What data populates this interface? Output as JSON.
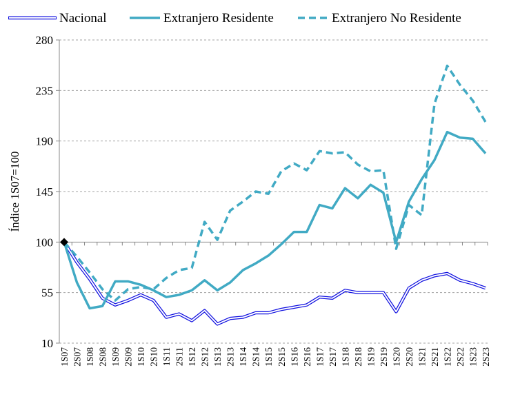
{
  "chart_data": {
    "type": "line",
    "title": "",
    "xlabel": "",
    "ylabel": "Índice 1S07=100",
    "ylim": [
      10,
      280
    ],
    "yticks": [
      10,
      55,
      100,
      145,
      190,
      235,
      280
    ],
    "grid": true,
    "legend_position": "top",
    "categories": [
      "1S07",
      "2S07",
      "1S08",
      "2S08",
      "1S09",
      "2S09",
      "1S10",
      "2S10",
      "1S11",
      "2S11",
      "1S12",
      "2S12",
      "1S13",
      "2S13",
      "1S14",
      "2S14",
      "1S15",
      "2S15",
      "1S16",
      "2S16",
      "1S17",
      "2S17",
      "1S18",
      "2S18",
      "1S19",
      "2S19",
      "1S20",
      "2S20",
      "1S21",
      "2S21",
      "1S22",
      "2S22",
      "1S23",
      "2S23"
    ],
    "series": [
      {
        "name": "Nacional",
        "color": "#1010e0",
        "style": "double",
        "values": [
          100,
          82,
          67,
          50,
          44,
          48,
          53,
          48,
          33,
          36,
          30,
          39,
          27,
          32,
          33,
          37,
          37,
          40,
          42,
          44,
          51,
          50,
          57,
          55,
          55,
          55,
          38,
          59,
          66,
          70,
          72,
          66,
          63,
          59
        ]
      },
      {
        "name": "Extranjero Residente",
        "color": "#41aac4",
        "style": "solid",
        "values": [
          100,
          64,
          41,
          43,
          65,
          65,
          62,
          57,
          51,
          53,
          57,
          66,
          57,
          64,
          75,
          81,
          88,
          98,
          109,
          109,
          133,
          130,
          148,
          139,
          151,
          144,
          100,
          136,
          156,
          173,
          198,
          193,
          192,
          179
        ]
      },
      {
        "name": "Extranjero No Residente",
        "color": "#41aac4",
        "style": "dashed",
        "values": [
          100,
          87,
          73,
          58,
          48,
          58,
          60,
          58,
          68,
          75,
          77,
          118,
          102,
          128,
          136,
          145,
          143,
          163,
          170,
          164,
          181,
          179,
          180,
          169,
          163,
          164,
          94,
          133,
          124,
          223,
          257,
          240,
          226,
          207
        ]
      }
    ],
    "annotations": [
      {
        "type": "marker",
        "shape": "diamond",
        "category": "1S07",
        "value": 100,
        "color": "#000000"
      }
    ]
  }
}
